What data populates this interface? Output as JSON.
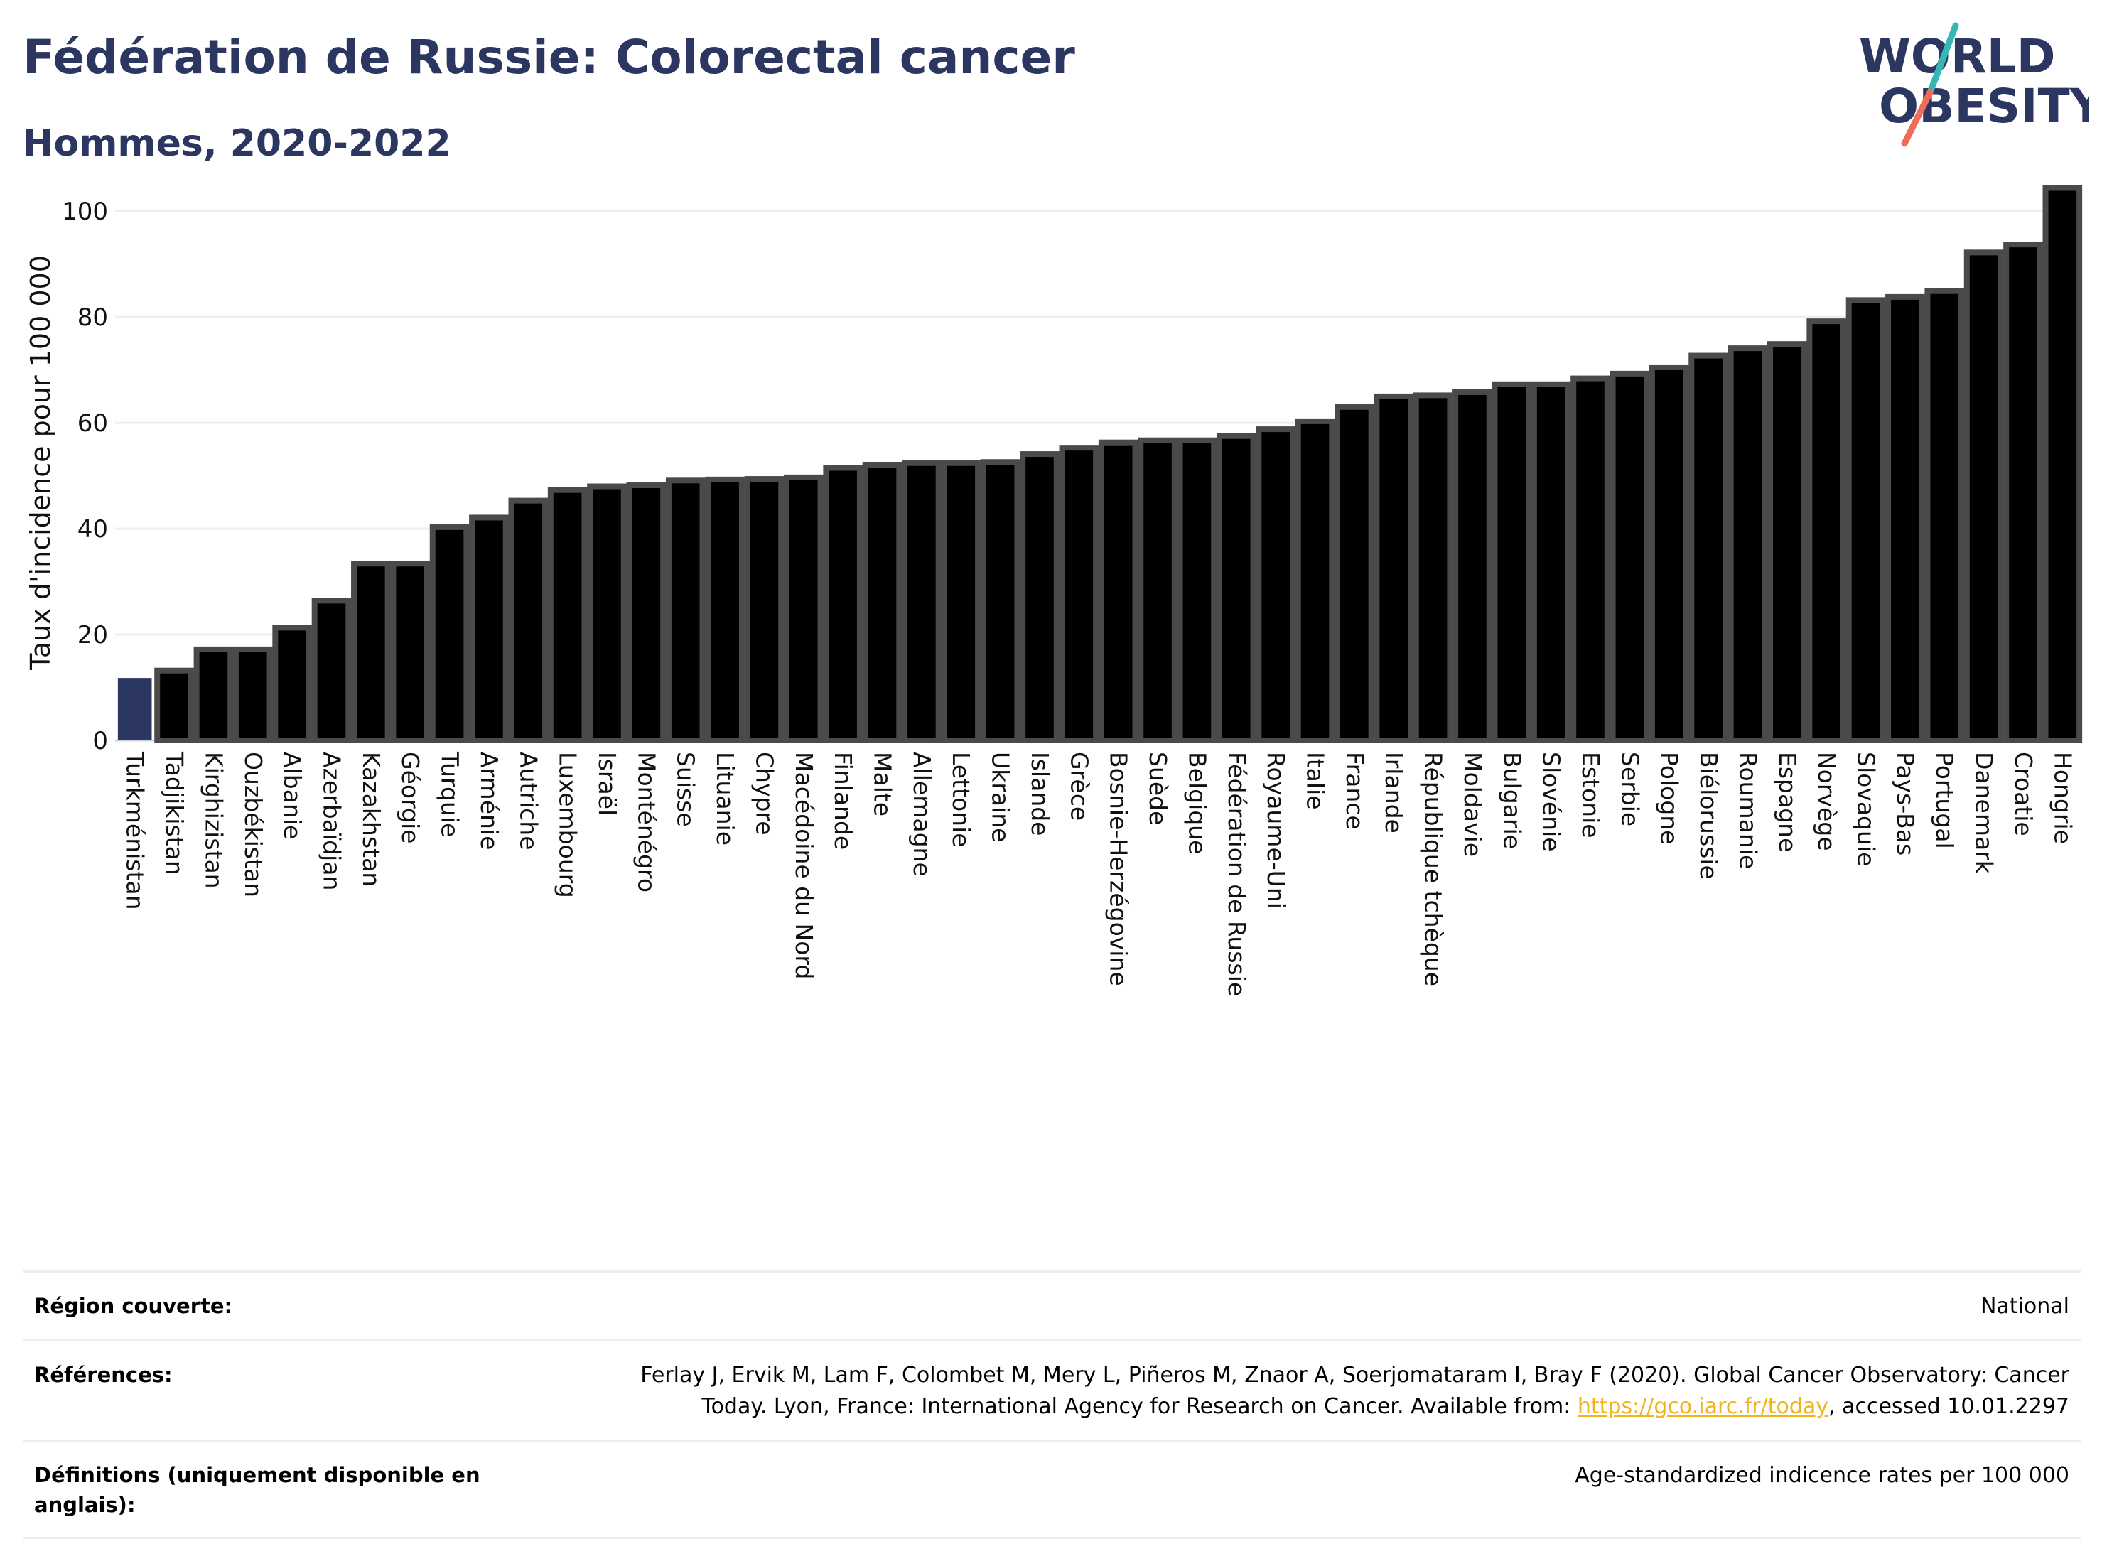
{
  "header": {
    "title": "Fédération de Russie: Colorectal cancer",
    "subtitle": "Hommes, 2020-2022"
  },
  "logo": {
    "line1": "WORLD",
    "line2": "OBESITY",
    "accent_teal": "#36b7b4",
    "accent_coral": "#ee6c5a",
    "text_color": "#2b3661"
  },
  "chart_data": {
    "type": "bar",
    "title": "",
    "xlabel": "",
    "ylabel": "Taux d'incidence pour 100 000",
    "ylim": [
      0,
      105
    ],
    "yticks": [
      0,
      20,
      40,
      60,
      80,
      100
    ],
    "grid": true,
    "highlight_category": "Turkménistan",
    "highlight_color": "#2b3661",
    "bar_color": "#000000",
    "bar_outline_color": "#4a4a4a",
    "categories": [
      "Turkménistan",
      "Tadjikistan",
      "Kirghizistan",
      "Ouzbékistan",
      "Albanie",
      "Azerbaïdjan",
      "Kazakhstan",
      "Géorgie",
      "Turquie",
      "Arménie",
      "Autriche",
      "Luxembourg",
      "Israël",
      "Monténégro",
      "Suisse",
      "Lituanie",
      "Chypre",
      "Macédoine du Nord",
      "Finlande",
      "Malte",
      "Allemagne",
      "Lettonie",
      "Ukraine",
      "Islande",
      "Grèce",
      "Bosnie-Herzégovine",
      "Suède",
      "Belgique",
      "Fédération de Russie",
      "Royaume-Uni",
      "Italie",
      "France",
      "Irlande",
      "République tchèque",
      "Moldavie",
      "Bulgarie",
      "Slovénie",
      "Estonie",
      "Serbie",
      "Pologne",
      "Biélorussie",
      "Roumanie",
      "Espagne",
      "Norvège",
      "Slovaquie",
      "Pays-Bas",
      "Portugal",
      "Danemark",
      "Croatie",
      "Hongrie"
    ],
    "values": [
      11.8,
      13.2,
      17.2,
      17.2,
      21.3,
      26.4,
      33.4,
      33.4,
      40.3,
      42.1,
      45.3,
      47.3,
      48.0,
      48.2,
      49.1,
      49.3,
      49.4,
      49.7,
      51.5,
      52.1,
      52.4,
      52.4,
      52.6,
      54.1,
      55.3,
      56.3,
      56.7,
      56.7,
      57.5,
      58.8,
      60.3,
      63.0,
      65.0,
      65.2,
      65.8,
      67.3,
      67.3,
      68.4,
      69.3,
      70.5,
      72.7,
      74.1,
      74.9,
      79.2,
      83.2,
      83.8,
      84.9,
      92.2,
      93.7,
      104.4
    ]
  },
  "info": {
    "region_label": "Région couverte:",
    "region_value": "National",
    "references_label": "Références:",
    "references_line1": "Ferlay J, Ervik M, Lam F, Colombet M, Mery L, Piñeros M, Znaor A, Soerjomataram I, Bray F (2020). Global Cancer Observatory: Cancer",
    "references_line2a": "Today. Lyon, France: International Agency for Research on Cancer. Available from: ",
    "references_link": "https://gco.iarc.fr/today",
    "references_line2b": ", accessed 10.01.2297",
    "definitions_label": "Définitions (uniquement disponible en anglais):",
    "definitions_value": "Age-standardized indicence rates per 100 000"
  }
}
